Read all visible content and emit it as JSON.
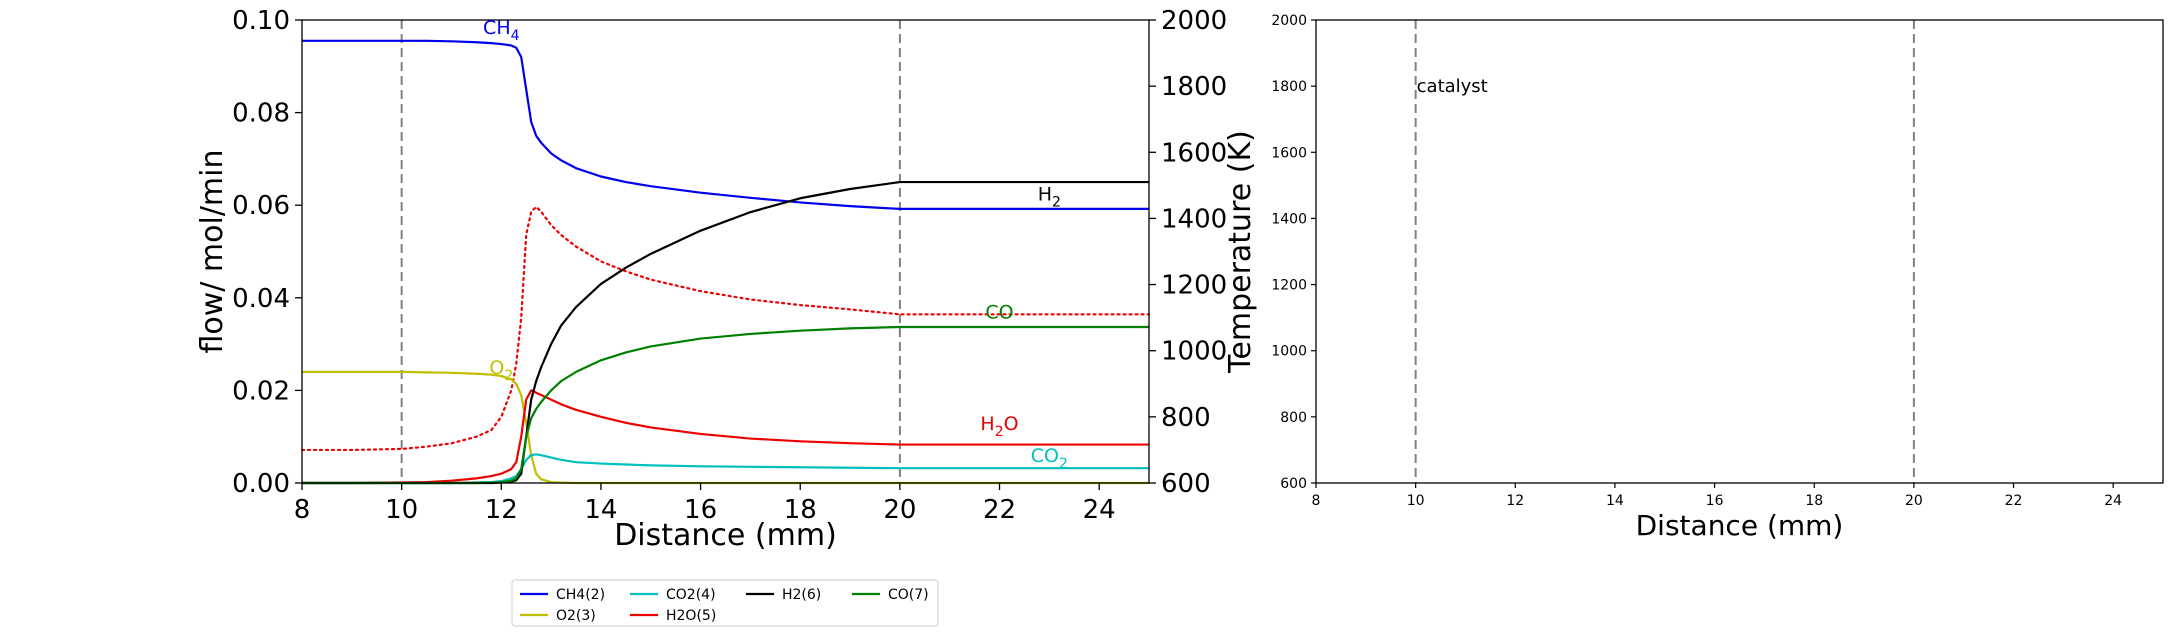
{
  "colors": {
    "CH4": "#0000ee",
    "O2": "#bfbf00",
    "CO2": "#00bfbf",
    "H2O": "#ee0000",
    "H2": "#000000",
    "CO": "#008000",
    "temperature": "#ee0000",
    "marker_line": "#808080"
  },
  "chart_data": [
    {
      "type": "line",
      "xlabel": "Distance (mm)",
      "ylabel": "flow/ mol/min",
      "y2label": "Temperature (K)",
      "xlim": [
        8,
        25
      ],
      "ylim": [
        0,
        0.1
      ],
      "y2lim": [
        600,
        2000
      ],
      "xticks": [
        "8",
        "10",
        "12",
        "14",
        "16",
        "18",
        "20",
        "22",
        "24"
      ],
      "yticks": [
        "0.00",
        "0.02",
        "0.04",
        "0.06",
        "0.08",
        "0.10"
      ],
      "y2ticks": [
        "600",
        "800",
        "1000",
        "1200",
        "1400",
        "1600",
        "1800",
        "2000"
      ],
      "vlines": [
        10,
        20
      ],
      "x": [
        8,
        9,
        10,
        10.5,
        11,
        11.5,
        11.8,
        12,
        12.2,
        12.3,
        12.4,
        12.5,
        12.6,
        12.7,
        12.8,
        13,
        13.2,
        13.5,
        14,
        14.5,
        15,
        16,
        17,
        18,
        19,
        20,
        21,
        22,
        23,
        24,
        25
      ],
      "series": [
        {
          "name": "CH4(2)",
          "color_key": "CH4",
          "style": "solid",
          "values": [
            0.0955,
            0.0955,
            0.0955,
            0.0955,
            0.0954,
            0.0952,
            0.095,
            0.0948,
            0.0945,
            0.094,
            0.092,
            0.085,
            0.078,
            0.075,
            0.0735,
            0.0712,
            0.0697,
            0.068,
            0.0662,
            0.065,
            0.0641,
            0.0627,
            0.0616,
            0.0606,
            0.0598,
            0.0592,
            0.0592,
            0.0592,
            0.0592,
            0.0592,
            0.0592
          ]
        },
        {
          "name": "O2(3)",
          "color_key": "O2",
          "style": "solid",
          "values": [
            0.024,
            0.024,
            0.024,
            0.0239,
            0.0238,
            0.0236,
            0.0234,
            0.0231,
            0.0224,
            0.0214,
            0.019,
            0.013,
            0.006,
            0.002,
            0.0008,
            0.0002,
            0.0001,
            0,
            0,
            0,
            0,
            0,
            0,
            0,
            0,
            0,
            0,
            0,
            0,
            0,
            0
          ]
        },
        {
          "name": "CO2(4)",
          "color_key": "CO2",
          "style": "solid",
          "values": [
            0,
            0,
            0,
            0,
            0,
            0.0001,
            0.0002,
            0.0004,
            0.001,
            0.0015,
            0.003,
            0.005,
            0.006,
            0.0062,
            0.006,
            0.0055,
            0.005,
            0.0045,
            0.0042,
            0.004,
            0.0038,
            0.0036,
            0.0035,
            0.0034,
            0.0033,
            0.0032,
            0.0032,
            0.0032,
            0.0032,
            0.0032,
            0.0032
          ]
        },
        {
          "name": "H2O(5)",
          "color_key": "H2O",
          "style": "solid",
          "values": [
            0,
            0,
            0.0001,
            0.0002,
            0.0005,
            0.001,
            0.0015,
            0.002,
            0.003,
            0.0045,
            0.01,
            0.018,
            0.02,
            0.0195,
            0.019,
            0.018,
            0.017,
            0.0158,
            0.0143,
            0.013,
            0.012,
            0.0106,
            0.0096,
            0.009,
            0.0086,
            0.0083,
            0.0083,
            0.0083,
            0.0083,
            0.0083,
            0.0083
          ]
        },
        {
          "name": "H2(6)",
          "color_key": "H2",
          "style": "solid",
          "values": [
            0,
            0,
            0,
            0,
            0,
            0,
            0,
            0.0001,
            0.0003,
            0.0006,
            0.002,
            0.01,
            0.018,
            0.022,
            0.025,
            0.03,
            0.034,
            0.038,
            0.043,
            0.0465,
            0.0495,
            0.0545,
            0.0585,
            0.0615,
            0.0635,
            0.065,
            0.065,
            0.065,
            0.065,
            0.065,
            0.065
          ]
        },
        {
          "name": "CO(7)",
          "color_key": "CO",
          "style": "solid",
          "values": [
            0,
            0,
            0,
            0,
            0,
            0,
            0.0001,
            0.0002,
            0.0005,
            0.001,
            0.003,
            0.01,
            0.014,
            0.016,
            0.0175,
            0.02,
            0.022,
            0.024,
            0.0265,
            0.0282,
            0.0295,
            0.0312,
            0.0322,
            0.0329,
            0.0334,
            0.0337,
            0.0337,
            0.0337,
            0.0337,
            0.0337,
            0.0337
          ]
        }
      ],
      "temperature": {
        "axis": "right",
        "color_key": "temperature",
        "style": "dotted",
        "values": [
          700,
          700,
          703,
          710,
          720,
          740,
          760,
          800,
          880,
          960,
          1100,
          1350,
          1420,
          1435,
          1420,
          1380,
          1350,
          1315,
          1270,
          1240,
          1215,
          1180,
          1155,
          1138,
          1125,
          1110,
          1110,
          1110,
          1110,
          1110,
          1110
        ]
      },
      "annotations": [
        {
          "base": "CH",
          "sub": "4",
          "x": 12.0,
          "y": 0.097,
          "color_key": "CH4"
        },
        {
          "base": "H",
          "sub": "2",
          "x": 23.0,
          "y": 0.061,
          "color_key": "H2"
        },
        {
          "base": "CO",
          "sub": "",
          "x": 22.0,
          "y": 0.0355,
          "color_key": "CO"
        },
        {
          "base": "O",
          "sub": "2",
          "x": 12.0,
          "y": 0.0235,
          "color_key": "O2"
        },
        {
          "base": "H",
          "sub": "2",
          "suffix": "O",
          "x": 22.0,
          "y": 0.0115,
          "color_key": "H2O"
        },
        {
          "base": "CO",
          "sub": "2",
          "x": 23.0,
          "y": 0.0045,
          "color_key": "CO2"
        }
      ],
      "legend": {
        "placement": "below",
        "ncol": 4,
        "order": [
          "CH4(2)",
          "O2(3)",
          "CO2(4)",
          "H2O(5)",
          "H2(6)",
          "CO(7)"
        ]
      }
    },
    {
      "type": "line",
      "xlabel": "Distance (mm)",
      "xlim": [
        8,
        25
      ],
      "ylim": [
        600,
        2000
      ],
      "xticks": [
        "8",
        "10",
        "12",
        "14",
        "16",
        "18",
        "20",
        "22",
        "24"
      ],
      "yticks": [
        "600",
        "800",
        "1000",
        "1200",
        "1400",
        "1600",
        "1800",
        "2000"
      ],
      "vlines": [
        10,
        20
      ],
      "annotation": {
        "text": "catalyst",
        "x": 10,
        "y": 1800
      },
      "series": []
    }
  ]
}
